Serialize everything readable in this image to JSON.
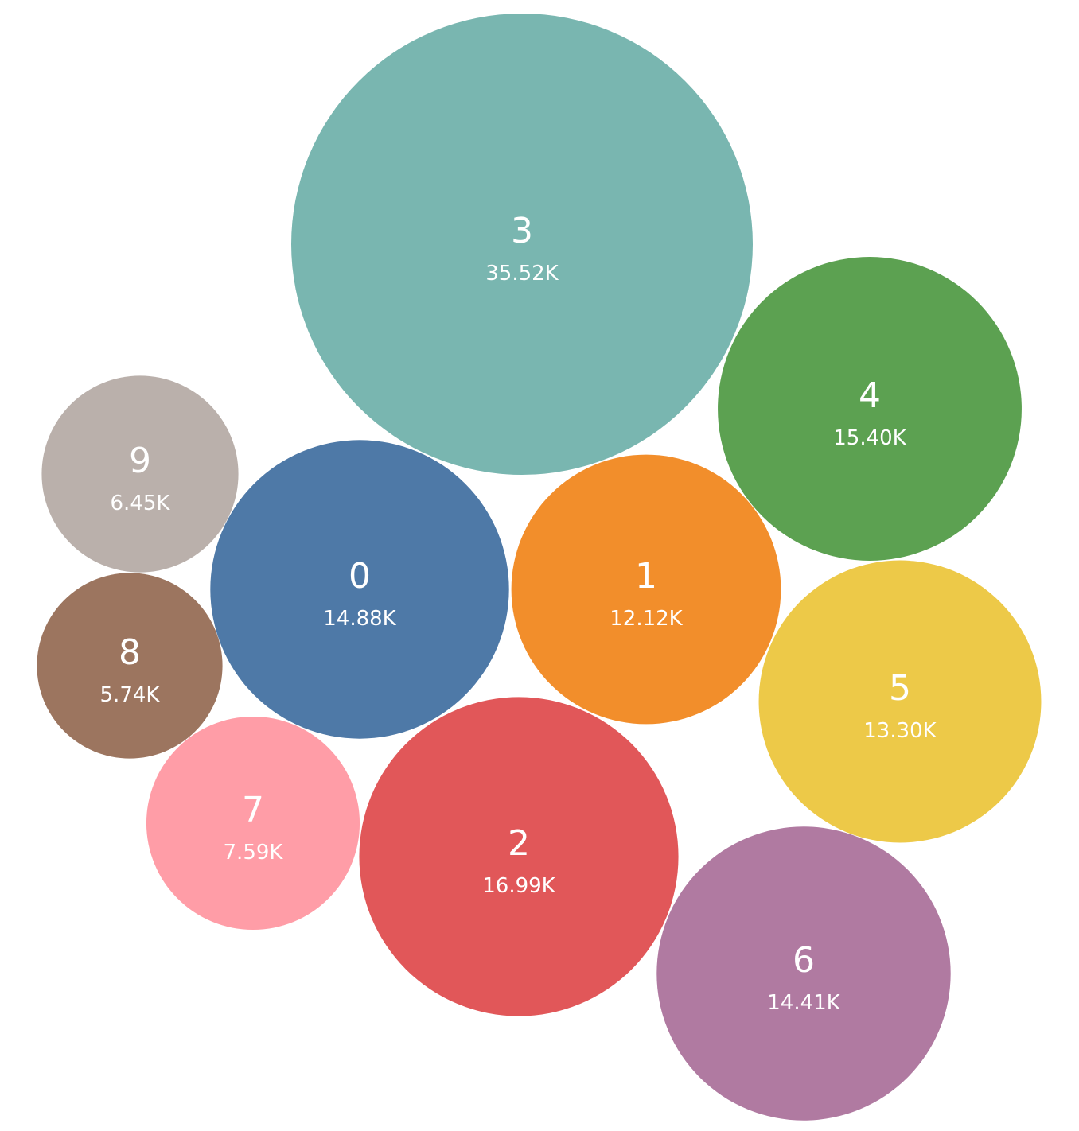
{
  "chart_data": {
    "type": "bubble",
    "series": [
      {
        "label": "3",
        "value_label": "35.52K",
        "value": 35520,
        "color": "#79b6b0"
      },
      {
        "label": "4",
        "value_label": "15.40K",
        "value": 15400,
        "color": "#5ca151"
      },
      {
        "label": "9",
        "value_label": "6.45K",
        "value": 6450,
        "color": "#bab0ab"
      },
      {
        "label": "0",
        "value_label": "14.88K",
        "value": 14880,
        "color": "#4e79a7"
      },
      {
        "label": "1",
        "value_label": "12.12K",
        "value": 12120,
        "color": "#f28e2b"
      },
      {
        "label": "8",
        "value_label": "5.74K",
        "value": 5740,
        "color": "#9c755f"
      },
      {
        "label": "5",
        "value_label": "13.30K",
        "value": 13300,
        "color": "#edc948"
      },
      {
        "label": "7",
        "value_label": "7.59K",
        "value": 7590,
        "color": "#ff9da7"
      },
      {
        "label": "2",
        "value_label": "16.99K",
        "value": 16990,
        "color": "#e15759"
      },
      {
        "label": "6",
        "value_label": "14.41K",
        "value": 14410,
        "color": "#b07aa1"
      }
    ]
  }
}
